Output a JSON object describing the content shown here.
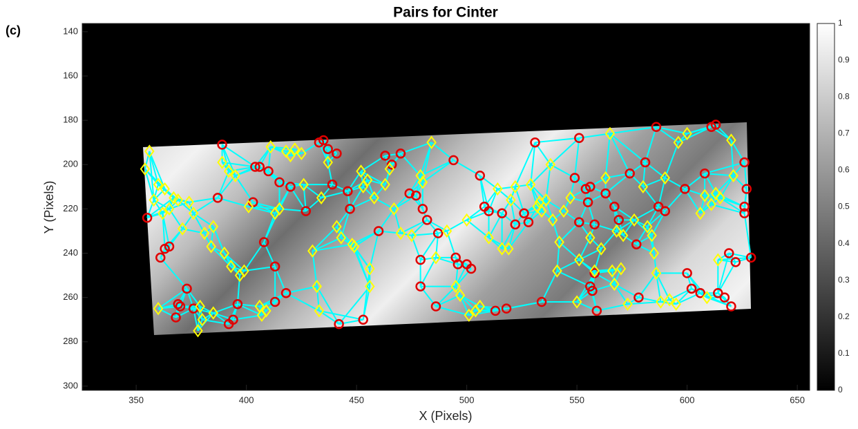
{
  "chart_data": {
    "type": "scatter",
    "title": "Pairs for Cinter",
    "panel_label": "(c)",
    "x_label": "X (Pixels)",
    "y_label": "Y (Pixels)",
    "xlim": [
      325.5,
      655.6
    ],
    "xticks": [
      350,
      400,
      450,
      500,
      550,
      600,
      650
    ],
    "ylim": [
      136.3,
      301.9
    ],
    "yticks": [
      140,
      160,
      180,
      200,
      220,
      240,
      260,
      280,
      300
    ],
    "y_reversed": true,
    "line_color": "#00ffff",
    "series": [
      {
        "marker": "circle",
        "color": "#e00000",
        "x": [
          355,
          361,
          363,
          365,
          373,
          369,
          370,
          368,
          376,
          387,
          389,
          392,
          394,
          396,
          404,
          406,
          403,
          410,
          408,
          413,
          413,
          415,
          418,
          420,
          427,
          433,
          435,
          437,
          439,
          441,
          442,
          446,
          447,
          453,
          460,
          463,
          466,
          470,
          474,
          477,
          479,
          479,
          480,
          482,
          486,
          487,
          494,
          495,
          496,
          500,
          502,
          506,
          508,
          510,
          513,
          516,
          518,
          522,
          526,
          528,
          531,
          534,
          549,
          551,
          551,
          554,
          555,
          556,
          556,
          557,
          558,
          558,
          559,
          563,
          567,
          569,
          574,
          577,
          578,
          581,
          586,
          587,
          590,
          599,
          600,
          602,
          606,
          608,
          611,
          613,
          614,
          617,
          619,
          620,
          622,
          626,
          626,
          627,
          626,
          629
        ],
        "y": [
          224,
          242,
          238,
          237,
          256,
          263,
          264,
          269,
          265,
          215,
          191,
          272,
          270,
          263,
          201,
          201,
          217,
          203,
          235,
          246,
          262,
          208,
          258,
          210,
          221,
          190,
          189,
          193,
          209,
          195,
          272,
          212,
          220,
          270,
          230,
          196,
          200,
          195,
          213,
          214,
          243,
          255,
          220,
          225,
          264,
          231,
          198,
          242,
          245,
          245,
          247,
          205,
          219,
          221,
          266,
          222,
          265,
          227,
          222,
          226,
          190,
          262,
          206,
          188,
          226,
          211,
          217,
          210,
          255,
          257,
          227,
          249,
          266,
          213,
          219,
          225,
          204,
          236,
          260,
          199,
          183,
          219,
          221,
          211,
          249,
          256,
          258,
          204,
          183,
          182,
          258,
          260,
          240,
          264,
          244,
          199,
          219,
          211,
          222,
          242
        ]
      },
      {
        "marker": "diamond",
        "color": "#ffff00",
        "x": [
          354,
          356,
          358,
          360,
          363,
          362,
          365,
          367,
          369,
          371,
          374,
          376,
          360,
          379,
          380,
          378,
          385,
          381,
          384,
          385,
          389,
          392,
          395,
          390,
          393,
          397,
          399,
          401,
          406,
          407,
          409,
          411,
          413,
          415,
          418,
          420,
          422,
          425,
          426,
          430,
          432,
          433,
          434,
          437,
          441,
          443,
          448,
          449,
          452,
          453,
          455,
          456,
          456,
          458,
          463,
          465,
          467,
          470,
          475,
          479,
          480,
          484,
          486,
          491,
          495,
          497,
          500,
          501,
          504,
          506,
          510,
          514,
          516,
          519,
          520,
          522,
          529,
          532,
          533,
          534,
          536,
          538,
          539,
          541,
          542,
          544,
          547,
          550,
          551,
          556,
          558,
          561,
          563,
          565,
          566,
          567,
          568,
          570,
          571,
          573,
          576,
          580,
          582,
          584,
          585,
          586,
          588,
          590,
          592,
          595,
          596,
          600,
          606,
          608,
          609,
          611,
          613,
          614,
          615,
          620,
          621
        ],
        "y": [
          202,
          194,
          216,
          209,
          211,
          222,
          220,
          215,
          216,
          229,
          217,
          222,
          265,
          264,
          270,
          275,
          267,
          231,
          237,
          228,
          199,
          203,
          205,
          240,
          246,
          250,
          248,
          219,
          264,
          268,
          266,
          192,
          222,
          220,
          194,
          196,
          193,
          195,
          209,
          239,
          255,
          266,
          215,
          199,
          228,
          233,
          236,
          237,
          203,
          210,
          207,
          247,
          255,
          215,
          209,
          202,
          220,
          231,
          232,
          205,
          208,
          190,
          242,
          230,
          255,
          259,
          225,
          268,
          266,
          264,
          233,
          211,
          238,
          238,
          216,
          210,
          209,
          219,
          217,
          221,
          216,
          200,
          225,
          248,
          235,
          221,
          215,
          262,
          243,
          233,
          248,
          238,
          206,
          186,
          248,
          254,
          230,
          247,
          232,
          263,
          225,
          210,
          228,
          232,
          240,
          249,
          262,
          206,
          261,
          263,
          190,
          186,
          222,
          214,
          260,
          218,
          213,
          243,
          215,
          189,
          205
        ]
      }
    ],
    "colorbar": {
      "lim": [
        0,
        1
      ],
      "ticks": [
        0,
        0.1,
        0.2,
        0.3,
        0.4,
        0.5,
        0.6,
        0.7,
        0.8,
        0.9,
        1
      ]
    }
  }
}
